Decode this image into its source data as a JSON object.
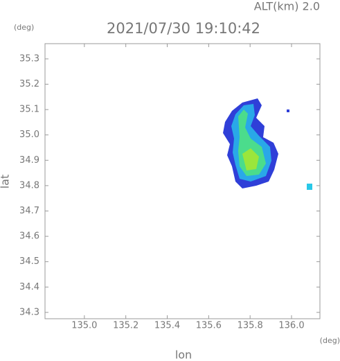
{
  "chart_data": {
    "type": "map",
    "title": "2021/07/30 19:10:42",
    "subtitle": "ALT(km) 2.0",
    "y_unit": "(deg)",
    "x_unit": "(deg)",
    "xlabel": "lon",
    "ylabel": "lat",
    "xlim": [
      134.81,
      136.137
    ],
    "ylim": [
      34.275,
      35.36
    ],
    "xticks": [
      {
        "value": 135.0,
        "label": "135.0"
      },
      135.2,
      135.4,
      135.6,
      135.8,
      {
        "value": 136.0,
        "label": "136.0"
      }
    ],
    "yticks": [
      34.3,
      34.4,
      34.5,
      34.6,
      34.7,
      34.8,
      34.9,
      {
        "value": 35.0,
        "label": "35.0"
      },
      35.1,
      35.2,
      35.3
    ]
  }
}
